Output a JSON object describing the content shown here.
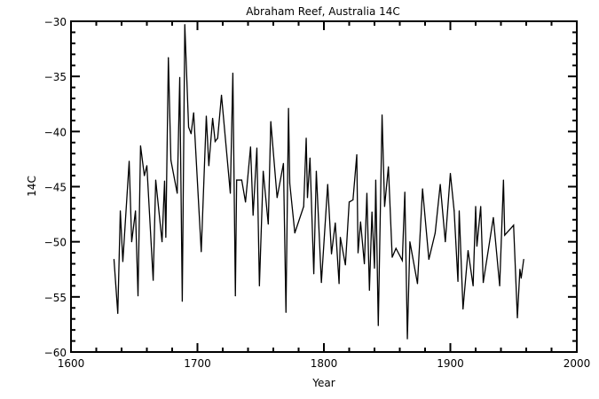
{
  "chart_data": {
    "type": "line",
    "title": "Abraham Reef, Australia 14C",
    "xlabel": "Year",
    "ylabel": "14C",
    "xlim": [
      1600,
      2000
    ],
    "ylim": [
      -60,
      -30
    ],
    "xticks": [
      1600,
      1700,
      1800,
      1900,
      2000
    ],
    "yticks": [
      -60,
      -55,
      -50,
      -45,
      -40,
      -35,
      -30
    ],
    "grid": false,
    "line_color": "#000000",
    "x": [
      1634,
      1637,
      1639,
      1641,
      1646,
      1648,
      1651,
      1653,
      1655,
      1658,
      1660,
      1665,
      1667,
      1672,
      1674,
      1675,
      1677,
      1679,
      1684,
      1686,
      1688,
      1690,
      1693,
      1695,
      1697,
      1703,
      1707,
      1709,
      1712,
      1714,
      1716,
      1719,
      1726,
      1728,
      1730,
      1731,
      1735,
      1738,
      1742,
      1744,
      1747,
      1749,
      1752,
      1756,
      1758,
      1763,
      1768,
      1770,
      1772,
      1773,
      1777,
      1784,
      1786,
      1787,
      1789,
      1792,
      1794,
      1798,
      1803,
      1806,
      1809,
      1812,
      1813,
      1817,
      1820,
      1823,
      1826,
      1827,
      1829,
      1832,
      1834,
      1836,
      1838,
      1840,
      1841,
      1843,
      1846,
      1848,
      1851,
      1854,
      1857,
      1862,
      1864,
      1866,
      1868,
      1874,
      1878,
      1883,
      1888,
      1892,
      1896,
      1900,
      1903,
      1906,
      1907,
      1910,
      1914,
      1918,
      1920,
      1921,
      1924,
      1926,
      1934,
      1939,
      1942,
      1943,
      1950,
      1953,
      1955,
      1956,
      1958
    ],
    "y": [
      -51.6,
      -56.5,
      -47.2,
      -51.8,
      -42.7,
      -50,
      -47.2,
      -54.9,
      -41.3,
      -44,
      -43.1,
      -53.5,
      -44.4,
      -50,
      -44.5,
      -49.6,
      -33.3,
      -42.6,
      -45.6,
      -35.1,
      -55.4,
      -30.3,
      -39.6,
      -40.2,
      -38.3,
      -50.9,
      -38.6,
      -43.1,
      -38.8,
      -40.9,
      -40.6,
      -36.7,
      -45.6,
      -34.7,
      -54.9,
      -44.4,
      -44.4,
      -46.4,
      -41.4,
      -47.6,
      -41.5,
      -54,
      -43.6,
      -48.4,
      -39.1,
      -46,
      -42.9,
      -56.4,
      -37.9,
      -44.7,
      -49.2,
      -46.8,
      -40.6,
      -46,
      -42.4,
      -52.9,
      -43.6,
      -53.7,
      -44.8,
      -51.1,
      -48.3,
      -53.8,
      -49.6,
      -52.1,
      -46.4,
      -46.2,
      -42.1,
      -51,
      -48.2,
      -52,
      -45.6,
      -54.4,
      -47.3,
      -52.4,
      -44.4,
      -57.6,
      -38.5,
      -46.8,
      -43.2,
      -51.4,
      -50.6,
      -51.7,
      -45.5,
      -58.8,
      -50,
      -53.8,
      -45.2,
      -51.6,
      -49.2,
      -44.8,
      -50,
      -43.8,
      -47.2,
      -53.6,
      -47.2,
      -56.1,
      -50.8,
      -54,
      -46.8,
      -50.4,
      -46.8,
      -53.7,
      -47.8,
      -54,
      -44.4,
      -49.4,
      -48.5,
      -56.9,
      -52.5,
      -53.3,
      -51.6
    ]
  }
}
